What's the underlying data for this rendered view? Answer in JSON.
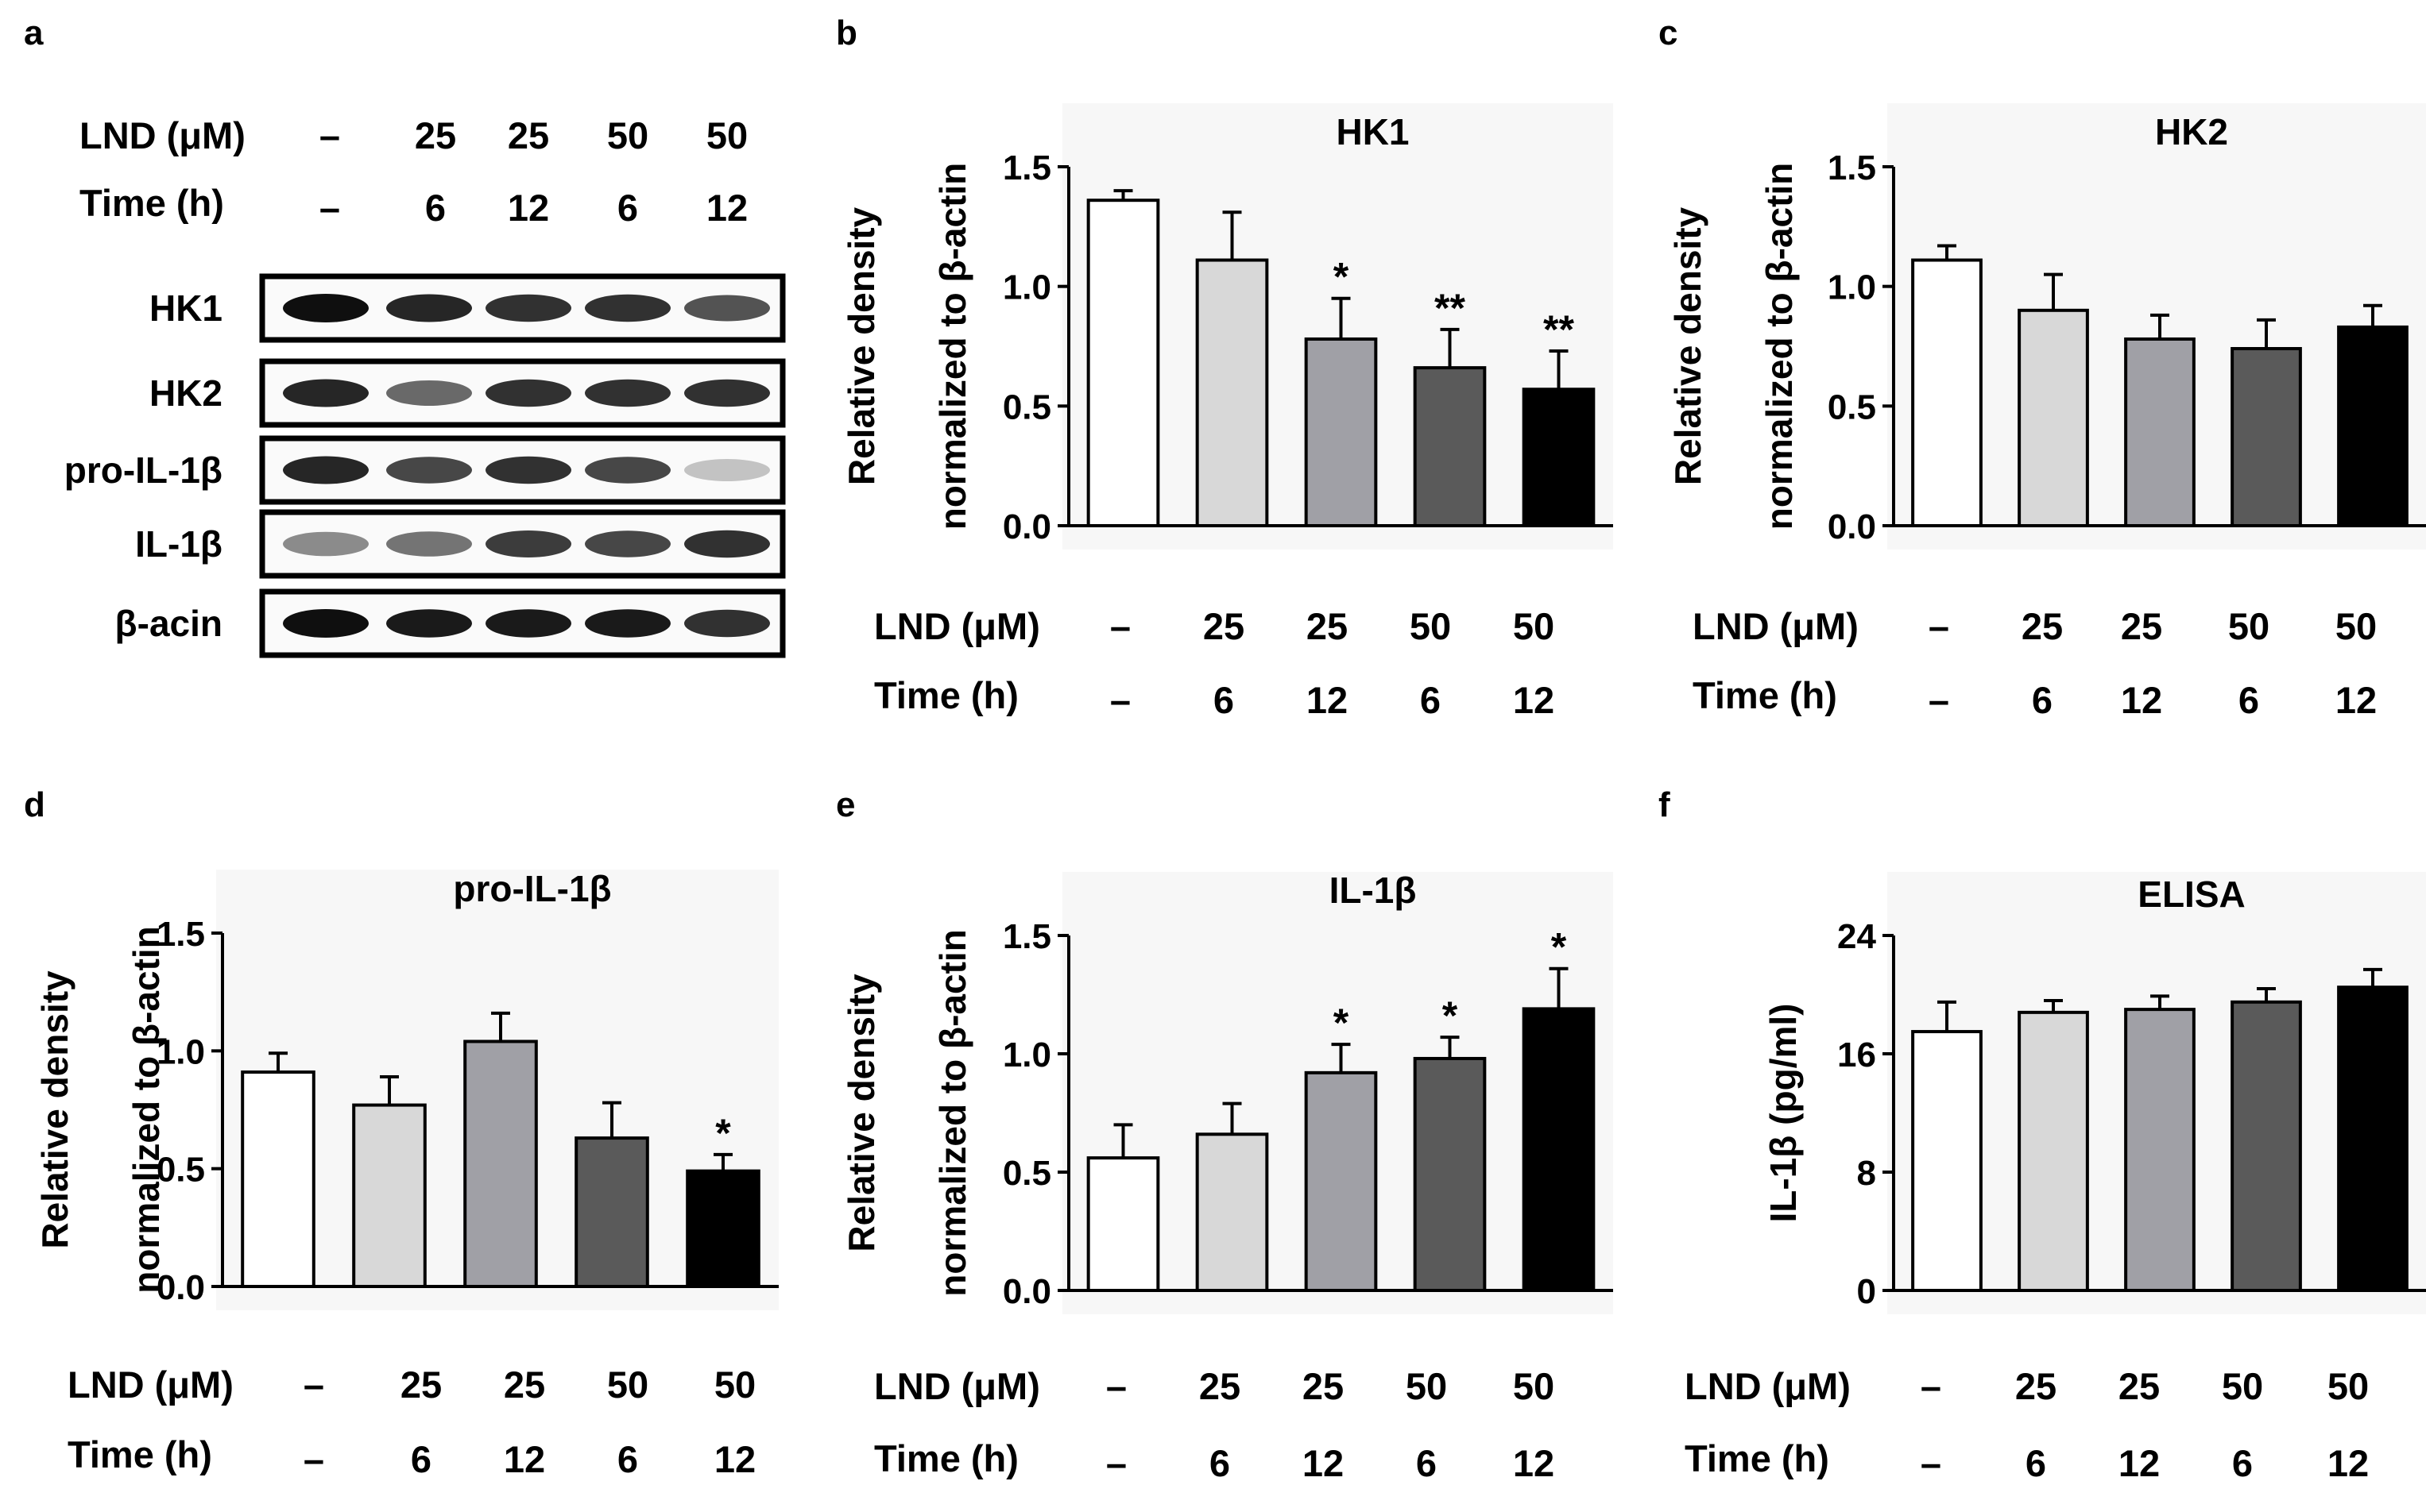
{
  "conditions": {
    "lnd_label": "LND (μM)",
    "time_label": "Time (h)",
    "lnd_values": [
      "–",
      "25",
      "25",
      "50",
      "50"
    ],
    "time_values": [
      "–",
      "6",
      "12",
      "6",
      "12"
    ]
  },
  "bar_colors": [
    "#ffffff",
    "#d8d8d8",
    "#a0a0a6",
    "#5a5a5a",
    "#000000"
  ],
  "panel_a": {
    "letter": "a",
    "rows": [
      "HK1",
      "HK2",
      "pro-IL-1β",
      "IL-1β",
      "β-acin"
    ],
    "band_intensity": [
      [
        1.0,
        0.9,
        0.85,
        0.85,
        0.7
      ],
      [
        0.9,
        0.6,
        0.85,
        0.85,
        0.85
      ],
      [
        0.9,
        0.75,
        0.85,
        0.75,
        0.2
      ],
      [
        0.45,
        0.55,
        0.8,
        0.75,
        0.85
      ],
      [
        1.0,
        0.95,
        0.95,
        0.95,
        0.85
      ]
    ]
  },
  "chart_data": [
    {
      "panel": "b",
      "type": "bar",
      "title": "HK1",
      "ylabel": [
        "Relative density",
        "normalized to β-actin"
      ],
      "categories": [
        "–/–",
        "25/6",
        "25/12",
        "50/6",
        "50/12"
      ],
      "values": [
        1.36,
        1.11,
        0.78,
        0.66,
        0.57
      ],
      "errors": [
        0.04,
        0.2,
        0.17,
        0.16,
        0.16
      ],
      "significance": [
        "",
        "",
        "*",
        "**",
        "**"
      ],
      "ylim": [
        0,
        1.5
      ],
      "yticks": [
        0.0,
        0.5,
        1.0,
        1.5
      ],
      "ytick_labels": [
        "0.0",
        "0.5",
        "1.0",
        "1.5"
      ]
    },
    {
      "panel": "c",
      "type": "bar",
      "title": "HK2",
      "ylabel": [
        "Relative density",
        "normalized to β-actin"
      ],
      "categories": [
        "–/–",
        "25/6",
        "25/12",
        "50/6",
        "50/12"
      ],
      "values": [
        1.11,
        0.9,
        0.78,
        0.74,
        0.83
      ],
      "errors": [
        0.06,
        0.15,
        0.1,
        0.12,
        0.09
      ],
      "significance": [
        "",
        "",
        "",
        "",
        ""
      ],
      "ylim": [
        0,
        1.5
      ],
      "yticks": [
        0.0,
        0.5,
        1.0,
        1.5
      ],
      "ytick_labels": [
        "0.0",
        "0.5",
        "1.0",
        "1.5"
      ]
    },
    {
      "panel": "d",
      "type": "bar",
      "title": "pro-IL-1β",
      "ylabel": [
        "Relative density",
        "normalized to β-actin"
      ],
      "categories": [
        "–/–",
        "25/6",
        "25/12",
        "50/6",
        "50/12"
      ],
      "values": [
        0.91,
        0.77,
        1.04,
        0.63,
        0.49
      ],
      "errors": [
        0.08,
        0.12,
        0.12,
        0.15,
        0.07
      ],
      "significance": [
        "",
        "",
        "",
        "",
        "*"
      ],
      "ylim": [
        0,
        1.5
      ],
      "yticks": [
        0.0,
        0.5,
        1.0,
        1.5
      ],
      "ytick_labels": [
        "0.0",
        "0.5",
        "1.0",
        "1.5"
      ]
    },
    {
      "panel": "e",
      "type": "bar",
      "title": "IL-1β",
      "ylabel": [
        "Relative density",
        "normalized to β-actin"
      ],
      "categories": [
        "–/–",
        "25/6",
        "25/12",
        "50/6",
        "50/12"
      ],
      "values": [
        0.56,
        0.66,
        0.92,
        0.98,
        1.19
      ],
      "errors": [
        0.14,
        0.13,
        0.12,
        0.09,
        0.17
      ],
      "significance": [
        "",
        "",
        "*",
        "*",
        "*"
      ],
      "ylim": [
        0,
        1.5
      ],
      "yticks": [
        0.0,
        0.5,
        1.0,
        1.5
      ],
      "ytick_labels": [
        "0.0",
        "0.5",
        "1.0",
        "1.5"
      ]
    },
    {
      "panel": "f",
      "type": "bar",
      "title": "ELISA",
      "ylabel": [
        "IL-1β (pg/ml)"
      ],
      "categories": [
        "–/–",
        "25/6",
        "25/12",
        "50/6",
        "50/12"
      ],
      "values": [
        17.5,
        18.8,
        19.0,
        19.5,
        20.5
      ],
      "errors": [
        2.0,
        0.8,
        0.9,
        0.9,
        1.2
      ],
      "significance": [
        "",
        "",
        "",
        "",
        ""
      ],
      "ylim": [
        0,
        24
      ],
      "yticks": [
        0,
        8,
        16,
        24
      ],
      "ytick_labels": [
        "0",
        "8",
        "16",
        "24"
      ]
    }
  ]
}
